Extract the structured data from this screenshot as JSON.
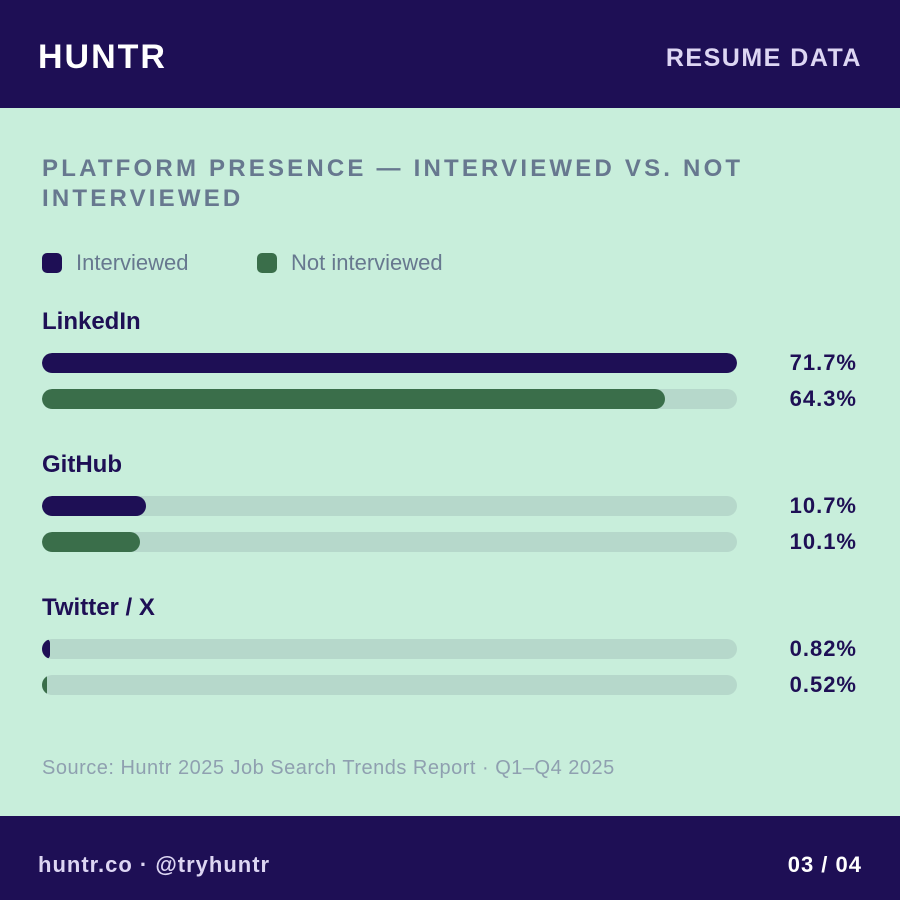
{
  "header": {
    "brand": "HUNTR",
    "section": "RESUME DATA"
  },
  "chart_data": {
    "type": "hbar",
    "title": "PLATFORM PRESENCE — INTERVIEWED VS. NOT INTERVIEWED",
    "categories": [
      "LinkedIn",
      "GitHub",
      "Twitter / X"
    ],
    "series": [
      {
        "name": "Interviewed",
        "color": "#1e0f55",
        "values": [
          71.7,
          10.7,
          0.82
        ],
        "value_labels": [
          "71.7%",
          "10.7%",
          "0.82%"
        ]
      },
      {
        "name": "Not interviewed",
        "color": "#3a6e4a",
        "values": [
          64.3,
          10.1,
          0.52
        ],
        "value_labels": [
          "64.3%",
          "10.1%",
          "0.52%"
        ]
      }
    ],
    "xlim": [
      0,
      71.7
    ],
    "track_color": "#b6d8cb",
    "source": "Source: Huntr 2025 Job Search Trends Report · Q1–Q4 2025"
  },
  "footer": {
    "handle": "huntr.co · @tryhuntr",
    "page": "03 / 04"
  }
}
